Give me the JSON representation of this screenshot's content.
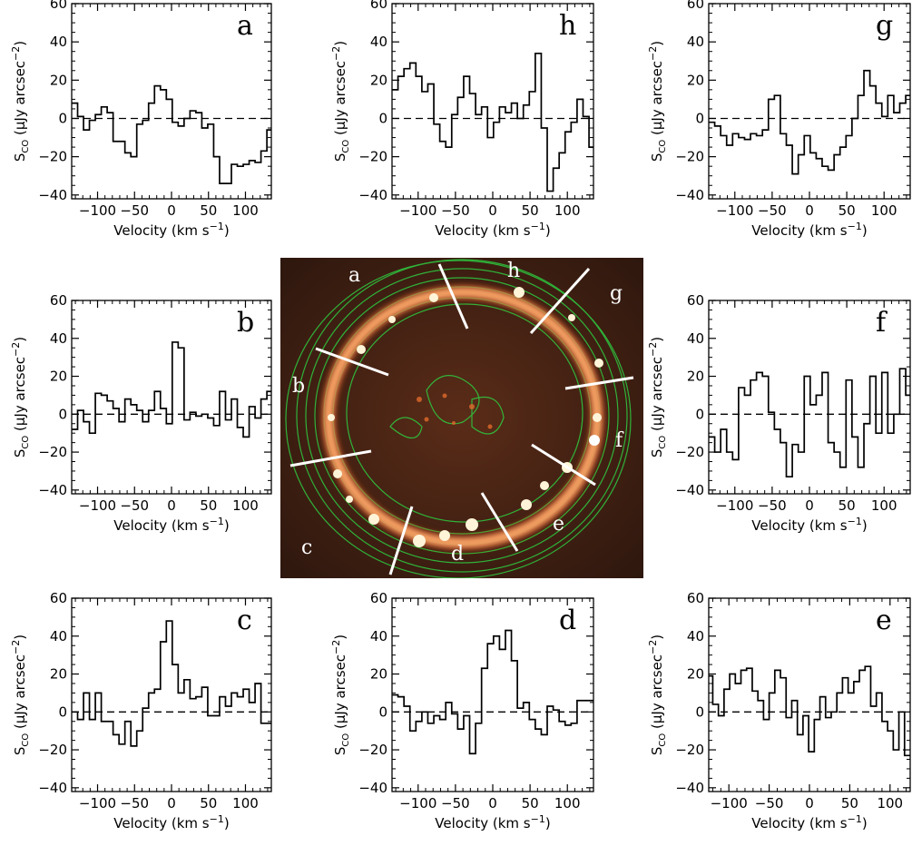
{
  "figure": {
    "image_labels": [
      "a",
      "h",
      "g",
      "b",
      "f",
      "c",
      "d",
      "e"
    ],
    "cut_color": "#ffffff",
    "contour_color": "#2ecc40",
    "ring_color": "#ffb070",
    "background_color": "#3a1e12"
  },
  "chart_data": [
    {
      "id": "a",
      "type": "line",
      "step": true,
      "panel_label": "a",
      "xlabel": "Velocity (km s",
      "xlabel_sup": "−1",
      "xlabel_end": ")",
      "ylabel_main": "S",
      "ylabel_sub": "CO",
      "ylabel_rest": " (μJy arcsec",
      "ylabel_sup": "−2",
      "ylabel_end": ")",
      "xlim": [
        -135,
        135
      ],
      "ylim": [
        -42,
        60
      ],
      "xticks": [
        -100,
        -50,
        0,
        50,
        100
      ],
      "xtick_labels": [
        "−100",
        "−50",
        "0",
        "50",
        "100"
      ],
      "yticks": [
        -40,
        -20,
        0,
        20,
        40,
        60
      ],
      "ytick_labels": [
        "−40",
        "−20",
        "0",
        "20",
        "40",
        "60"
      ],
      "zero_line": "dashed",
      "x": [
        -135,
        -127,
        -119,
        -111,
        -103,
        -95,
        -87,
        -79,
        -71,
        -63,
        -55,
        -47,
        -39,
        -31,
        -23,
        -15,
        -7,
        1,
        9,
        17,
        25,
        33,
        41,
        49,
        57,
        65,
        73,
        81,
        89,
        97,
        105,
        113,
        121,
        129,
        135
      ],
      "y": [
        8,
        1,
        -6,
        -1,
        2,
        6,
        3,
        -12,
        -12,
        -18,
        -20,
        -3,
        -1,
        8,
        17,
        15,
        10,
        -2,
        -4,
        0,
        4,
        3,
        -5,
        -3,
        -20,
        -34,
        -34,
        -24,
        -25,
        -24,
        -22,
        -23,
        -17,
        -6,
        -6
      ]
    },
    {
      "id": "h",
      "type": "line",
      "step": true,
      "panel_label": "h",
      "xlabel": "Velocity (km s",
      "xlabel_sup": "−1",
      "xlabel_end": ")",
      "ylabel_main": "S",
      "ylabel_sub": "CO",
      "ylabel_rest": " (μJy arcsec",
      "ylabel_sup": "−2",
      "ylabel_end": ")",
      "xlim": [
        -135,
        135
      ],
      "ylim": [
        -42,
        60
      ],
      "xticks": [
        -100,
        -50,
        0,
        50,
        100
      ],
      "xtick_labels": [
        "−100",
        "−50",
        "0",
        "50",
        "100"
      ],
      "yticks": [
        -40,
        -20,
        0,
        20,
        40,
        60
      ],
      "ytick_labels": [
        "−40",
        "−20",
        "0",
        "20",
        "40",
        "60"
      ],
      "zero_line": "dashed",
      "x": [
        -135,
        -127,
        -119,
        -111,
        -103,
        -95,
        -87,
        -79,
        -71,
        -63,
        -55,
        -47,
        -39,
        -31,
        -23,
        -15,
        -7,
        1,
        9,
        17,
        25,
        33,
        41,
        49,
        57,
        65,
        73,
        81,
        89,
        97,
        105,
        113,
        121,
        129,
        135
      ],
      "y": [
        15,
        22,
        26,
        29,
        22,
        14,
        18,
        -3,
        -12,
        -15,
        2,
        11,
        22,
        13,
        2,
        6,
        -10,
        -2,
        6,
        3,
        8,
        0,
        7,
        14,
        34,
        -5,
        -38,
        -26,
        -18,
        -7,
        -2,
        10,
        1,
        -15,
        -15
      ]
    },
    {
      "id": "g",
      "type": "line",
      "step": true,
      "panel_label": "g",
      "xlabel": "Velocity (km s",
      "xlabel_sup": "−1",
      "xlabel_end": ")",
      "ylabel_main": "S",
      "ylabel_sub": "CO",
      "ylabel_rest": " (μJy arcsec",
      "ylabel_sup": "−2",
      "ylabel_end": ")",
      "xlim": [
        -135,
        135
      ],
      "ylim": [
        -42,
        60
      ],
      "xticks": [
        -100,
        -50,
        0,
        50,
        100
      ],
      "xtick_labels": [
        "−100",
        "−50",
        "0",
        "50",
        "100"
      ],
      "yticks": [
        -40,
        -20,
        0,
        20,
        40,
        60
      ],
      "ytick_labels": [
        "−40",
        "−20",
        "0",
        "20",
        "40",
        "60"
      ],
      "zero_line": "dashed",
      "x": [
        -135,
        -127,
        -119,
        -111,
        -103,
        -95,
        -87,
        -79,
        -71,
        -63,
        -55,
        -47,
        -39,
        -31,
        -23,
        -15,
        -7,
        1,
        9,
        17,
        25,
        33,
        41,
        49,
        57,
        65,
        73,
        81,
        89,
        97,
        105,
        113,
        121,
        129,
        135
      ],
      "y": [
        -2,
        -4,
        -9,
        -14,
        -8,
        -10,
        -11,
        -8,
        -9,
        -6,
        10,
        12,
        -8,
        -14,
        -29,
        -19,
        -9,
        -18,
        -21,
        -25,
        -27,
        -19,
        -15,
        -9,
        0,
        12,
        25,
        17,
        8,
        1,
        12,
        3,
        8,
        12,
        12
      ]
    },
    {
      "id": "b",
      "type": "line",
      "step": true,
      "panel_label": "b",
      "xlabel": "Velocity (km s",
      "xlabel_sup": "−1",
      "xlabel_end": ")",
      "ylabel_main": "S",
      "ylabel_sub": "CO",
      "ylabel_rest": " (μJy arcsec",
      "ylabel_sup": "−2",
      "ylabel_end": ")",
      "xlim": [
        -135,
        135
      ],
      "ylim": [
        -42,
        60
      ],
      "xticks": [
        -100,
        -50,
        0,
        50,
        100
      ],
      "xtick_labels": [
        "−100",
        "−50",
        "0",
        "50",
        "100"
      ],
      "yticks": [
        -40,
        -20,
        0,
        20,
        40,
        60
      ],
      "ytick_labels": [
        "−40",
        "−20",
        "0",
        "20",
        "40",
        "60"
      ],
      "zero_line": "dashed",
      "x": [
        -135,
        -127,
        -119,
        -111,
        -103,
        -95,
        -87,
        -79,
        -71,
        -63,
        -55,
        -47,
        -39,
        -31,
        -23,
        -15,
        -7,
        1,
        9,
        17,
        25,
        33,
        41,
        49,
        57,
        65,
        73,
        81,
        89,
        97,
        105,
        113,
        121,
        129,
        135
      ],
      "y": [
        -8,
        2,
        -4,
        -10,
        11,
        10,
        7,
        3,
        -4,
        8,
        5,
        2,
        -4,
        2,
        12,
        3,
        -5,
        38,
        35,
        -3,
        1,
        -1,
        0,
        -2,
        -6,
        12,
        -3,
        8,
        -7,
        -12,
        4,
        -2,
        8,
        12,
        12
      ]
    },
    {
      "id": "f",
      "type": "line",
      "step": true,
      "panel_label": "f",
      "xlabel": "Velocity (km s",
      "xlabel_sup": "−1",
      "xlabel_end": ")",
      "ylabel_main": "S",
      "ylabel_sub": "CO",
      "ylabel_rest": " (μJy arcsec",
      "ylabel_sup": "−2",
      "ylabel_end": ")",
      "xlim": [
        -135,
        135
      ],
      "ylim": [
        -42,
        60
      ],
      "xticks": [
        -100,
        -50,
        0,
        50,
        100
      ],
      "xtick_labels": [
        "−100",
        "−50",
        "0",
        "50",
        "100"
      ],
      "yticks": [
        -40,
        -20,
        0,
        20,
        40,
        60
      ],
      "ytick_labels": [
        "−40",
        "−20",
        "0",
        "20",
        "40",
        "60"
      ],
      "zero_line": "dashed",
      "x": [
        -135,
        -127,
        -119,
        -111,
        -103,
        -95,
        -87,
        -79,
        -71,
        -63,
        -55,
        -47,
        -39,
        -31,
        -23,
        -15,
        -7,
        1,
        9,
        17,
        25,
        33,
        41,
        49,
        57,
        65,
        73,
        81,
        89,
        97,
        105,
        113,
        121,
        129,
        135
      ],
      "y": [
        -12,
        -20,
        -8,
        -20,
        -24,
        14,
        10,
        18,
        22,
        20,
        1,
        -8,
        -15,
        -33,
        -16,
        -20,
        20,
        5,
        10,
        22,
        -15,
        -20,
        -28,
        18,
        -12,
        -28,
        -5,
        20,
        -10,
        22,
        -10,
        0,
        24,
        10,
        10
      ]
    },
    {
      "id": "c",
      "type": "line",
      "step": true,
      "panel_label": "c",
      "xlabel": "Velocity (km s",
      "xlabel_sup": "−1",
      "xlabel_end": ")",
      "ylabel_main": "S",
      "ylabel_sub": "CO",
      "ylabel_rest": " (μJy arcsec",
      "ylabel_sup": "−2",
      "ylabel_end": ")",
      "xlim": [
        -135,
        135
      ],
      "ylim": [
        -42,
        60
      ],
      "xticks": [
        -100,
        -50,
        0,
        50,
        100
      ],
      "xtick_labels": [
        "−100",
        "−50",
        "0",
        "50",
        "100"
      ],
      "yticks": [
        -40,
        -20,
        0,
        20,
        40,
        60
      ],
      "ytick_labels": [
        "−40",
        "−20",
        "0",
        "20",
        "40",
        "60"
      ],
      "zero_line": "dashed",
      "x": [
        -135,
        -127,
        -119,
        -111,
        -103,
        -95,
        -87,
        -79,
        -71,
        -63,
        -55,
        -47,
        -39,
        -31,
        -23,
        -15,
        -7,
        1,
        9,
        17,
        25,
        33,
        41,
        49,
        57,
        65,
        73,
        81,
        89,
        97,
        105,
        113,
        121,
        129,
        135
      ],
      "y": [
        0,
        -4,
        10,
        -4,
        10,
        -5,
        -5,
        -12,
        -17,
        -5,
        -18,
        -10,
        2,
        10,
        12,
        37,
        48,
        25,
        10,
        17,
        7,
        8,
        13,
        -2,
        -2,
        8,
        3,
        10,
        8,
        12,
        5,
        15,
        -6,
        -6,
        -6
      ]
    },
    {
      "id": "d",
      "type": "line",
      "step": true,
      "panel_label": "d",
      "xlabel": "Velocity (km s",
      "xlabel_sup": "−1",
      "xlabel_end": ")",
      "ylabel_main": "S",
      "ylabel_sub": "CO",
      "ylabel_rest": " (μJy arcsec",
      "ylabel_sup": "−2",
      "ylabel_end": ")",
      "xlim": [
        -135,
        135
      ],
      "ylim": [
        -42,
        60
      ],
      "xticks": [
        -100,
        -50,
        0,
        50,
        100
      ],
      "xtick_labels": [
        "−100",
        "−50",
        "0",
        "50",
        "100"
      ],
      "yticks": [
        -40,
        -20,
        0,
        20,
        40,
        60
      ],
      "ytick_labels": [
        "−40",
        "−20",
        "0",
        "20",
        "40",
        "60"
      ],
      "zero_line": "dashed",
      "x": [
        -135,
        -127,
        -119,
        -111,
        -103,
        -95,
        -87,
        -79,
        -71,
        -63,
        -55,
        -47,
        -39,
        -31,
        -23,
        -15,
        -7,
        1,
        9,
        17,
        25,
        33,
        41,
        49,
        57,
        65,
        73,
        81,
        89,
        97,
        105,
        113,
        121,
        129,
        135
      ],
      "y": [
        9,
        8,
        3,
        -10,
        -5,
        0,
        -6,
        -2,
        -4,
        5,
        -1,
        -9,
        -2,
        -22,
        -6,
        23,
        36,
        40,
        33,
        43,
        27,
        2,
        5,
        -4,
        -9,
        -12,
        3,
        1,
        -5,
        -7,
        -6,
        6,
        6,
        6,
        6
      ]
    },
    {
      "id": "e",
      "type": "line",
      "step": true,
      "panel_label": "e",
      "xlabel": "Velocity (km s",
      "xlabel_sup": "−1",
      "xlabel_end": ")",
      "ylabel_main": "S",
      "ylabel_sub": "CO",
      "ylabel_rest": " (μJy arcsec",
      "ylabel_sup": "−2",
      "ylabel_end": ")",
      "xlim": [
        -125,
        125
      ],
      "ylim": [
        -42,
        60
      ],
      "xticks": [
        -100,
        -50,
        0,
        50,
        100
      ],
      "xtick_labels": [
        "−100",
        "−50",
        "0",
        "50",
        "100"
      ],
      "yticks": [
        -40,
        -20,
        0,
        20,
        40,
        60
      ],
      "ytick_labels": [
        "−40",
        "−20",
        "0",
        "20",
        "40",
        "60"
      ],
      "zero_line": "dashed",
      "x": [
        -125,
        -120,
        -113,
        -106,
        -99,
        -92,
        -85,
        -78,
        -71,
        -64,
        -57,
        -50,
        -43,
        -36,
        -29,
        -22,
        -15,
        -8,
        -1,
        6,
        13,
        20,
        27,
        34,
        41,
        48,
        55,
        62,
        69,
        76,
        83,
        90,
        97,
        104,
        111,
        118,
        125
      ],
      "y": [
        19,
        4,
        -2,
        12,
        20,
        15,
        22,
        23,
        11,
        6,
        -4,
        10,
        22,
        18,
        -3,
        6,
        -12,
        -2,
        -21,
        -4,
        8,
        -3,
        0,
        10,
        18,
        10,
        16,
        22,
        24,
        3,
        10,
        -5,
        -10,
        -20,
        0,
        -23,
        -23
      ]
    }
  ]
}
